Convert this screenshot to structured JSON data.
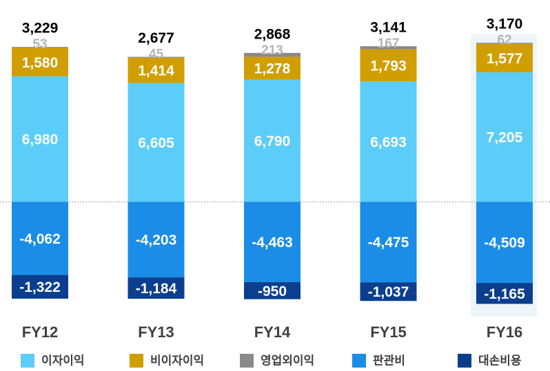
{
  "chart_data": {
    "type": "stacked-bar",
    "categories": [
      "FY12",
      "FY13",
      "FY14",
      "FY15",
      "FY16"
    ],
    "series": [
      {
        "name": "이자이익",
        "color": "#5ccdf8",
        "values": [
          6980,
          6605,
          6790,
          6693,
          7205
        ],
        "value_labels": [
          "6,980",
          "6,605",
          "6,790",
          "6,693",
          "7,205"
        ]
      },
      {
        "name": "비이자이익",
        "color": "#d19e00",
        "values": [
          1580,
          1414,
          1278,
          1793,
          1577
        ],
        "value_labels": [
          "1,580",
          "1,414",
          "1,278",
          "1,793",
          "1,577"
        ]
      },
      {
        "name": "영업외이익",
        "color": "#8a8a8a",
        "values": [
          53,
          45,
          213,
          167,
          62
        ]
      },
      {
        "name": "판관비",
        "color": "#1b8de6",
        "values": [
          -4062,
          -4203,
          -4463,
          -4475,
          -4509
        ],
        "value_labels": [
          "-4,062",
          "-4,203",
          "-4,463",
          "-4,475",
          "-4,509"
        ]
      },
      {
        "name": "대손비용",
        "color": "#0b3f8e",
        "values": [
          -1322,
          -1184,
          -950,
          -1037,
          -1165
        ],
        "value_labels": [
          "-1,322",
          "-1,184",
          "-950",
          "-1,037",
          "-1,165"
        ]
      }
    ],
    "totals": {
      "values": [
        3229,
        2677,
        2868,
        3141,
        3170
      ],
      "value_labels": [
        "3,229",
        "2,677",
        "2,868",
        "3,141",
        "3,170"
      ]
    },
    "ylim": [
      -6000,
      9500
    ]
  }
}
